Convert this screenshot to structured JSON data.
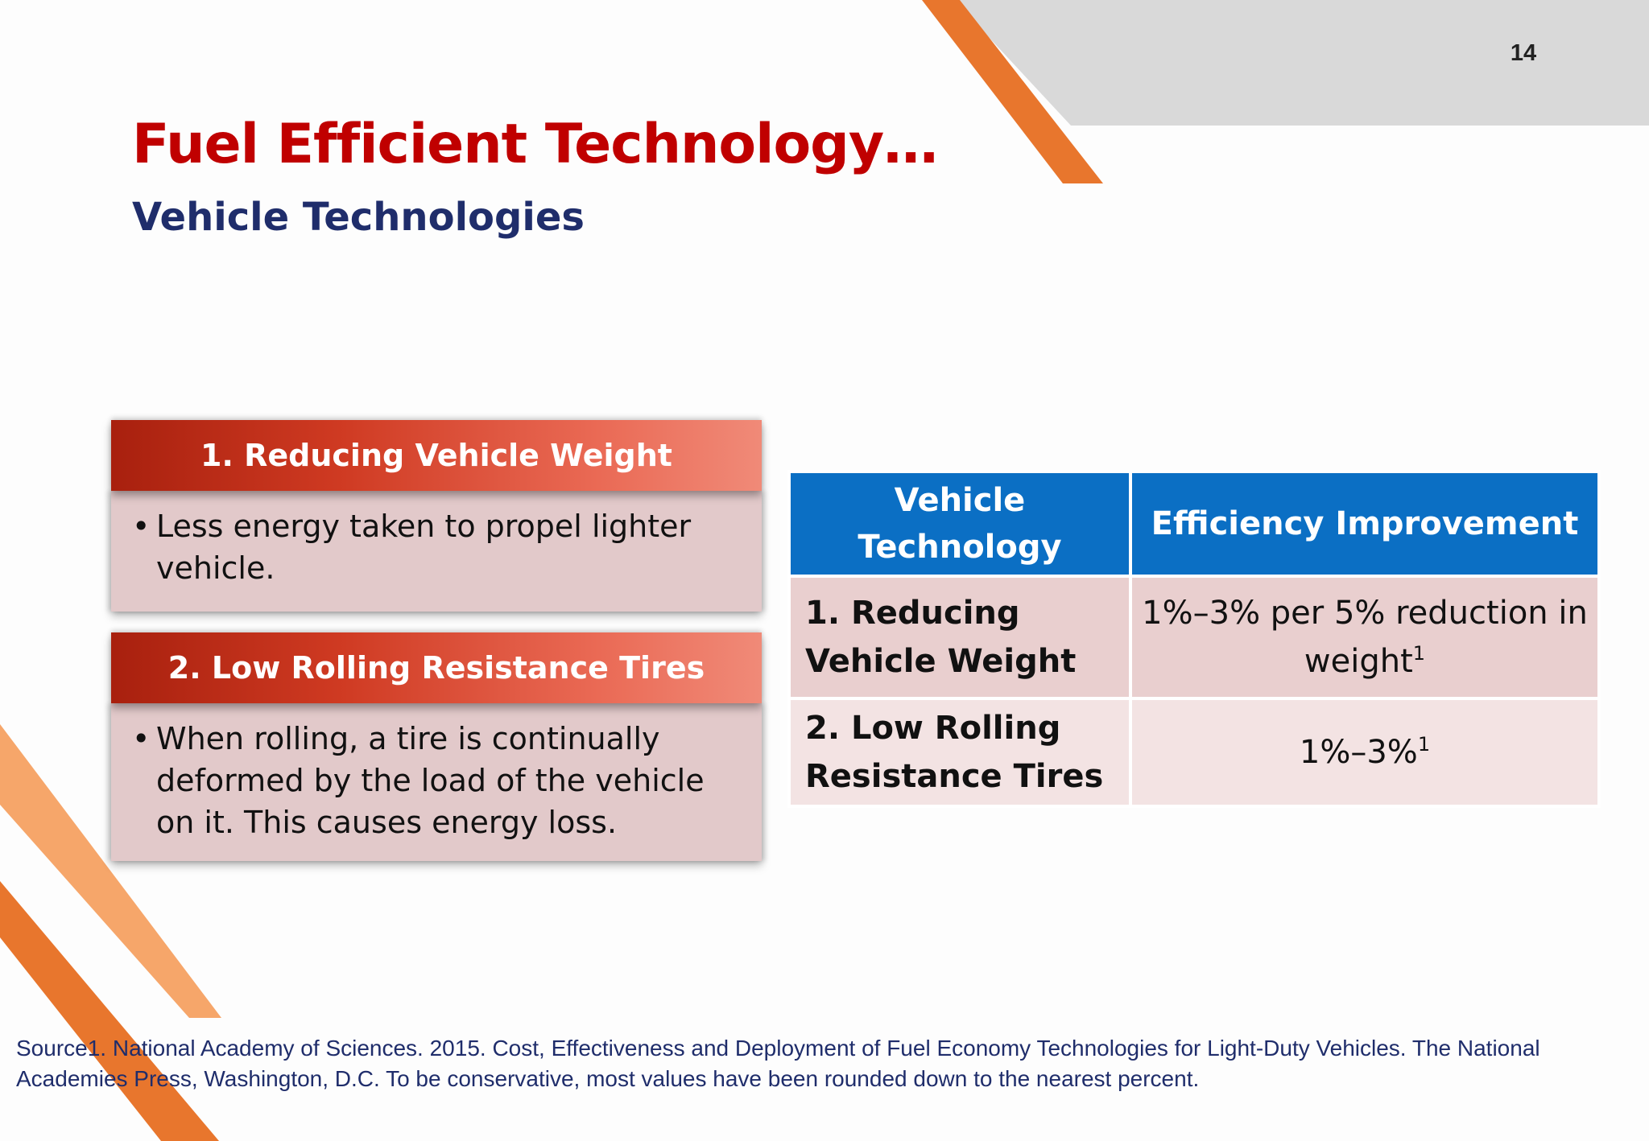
{
  "slide": {
    "page_number": "14",
    "title": "Fuel Efficient Technology…",
    "subtitle": "Vehicle Technologies"
  },
  "cards": [
    {
      "header": "1. Reducing Vehicle Weight",
      "bullet": "•",
      "body": "Less energy taken to propel lighter vehicle."
    },
    {
      "header": "2. Low Rolling Resistance Tires",
      "bullet": "•",
      "body": "When rolling, a tire is continually deformed by the load of the vehicle on it. This causes energy loss."
    }
  ],
  "table": {
    "headers": [
      "Vehicle Technology",
      "Efficiency Improvement"
    ],
    "rows": [
      {
        "technology": "1. Reducing Vehicle Weight",
        "improvement": "1%–3% per 5% reduction in weight",
        "footnote": "1"
      },
      {
        "technology": "2. Low Rolling Resistance Tires",
        "improvement": "1%–3%",
        "footnote": "1"
      }
    ]
  },
  "source": "Source1. National Academy of Sciences. 2015. Cost, Effectiveness and Deployment of Fuel Economy Technologies for Light-Duty Vehicles. The National Academies Press, Washington, D.C. To be conservative, most values have been rounded down to the nearest percent.",
  "colors": {
    "title_red": "#c00000",
    "subtitle_navy": "#1f2d6b",
    "table_header_blue": "#0b6fc4",
    "accent_orange": "#e8762d",
    "accent_light_orange": "#f6a66a",
    "banner_gray": "#d9d9d9"
  }
}
